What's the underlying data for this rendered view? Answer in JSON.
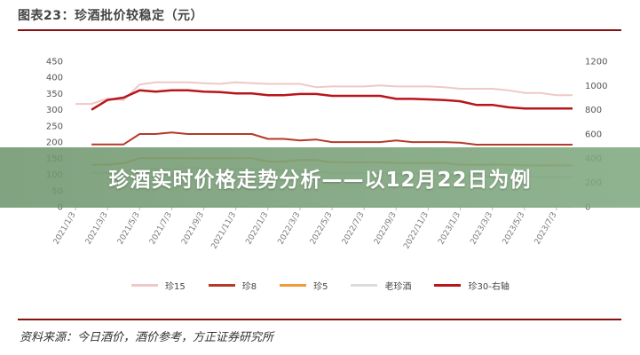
{
  "chart_title": "图表23：珍酒批价较稳定（元）",
  "banner": "珍酒实时价格走势分析——以12月22日为例",
  "source": "资料来源：今日酒价，酒价参考，方正证券研究所",
  "chart_data": {
    "type": "line",
    "title": "图表23：珍酒批价较稳定（元）",
    "xlabel": "",
    "ylabel": "",
    "ylim": [
      0,
      450
    ],
    "y2lim": [
      0,
      1200
    ],
    "yticks": [
      "450",
      "400",
      "350",
      "300",
      "250",
      "200",
      "150",
      "100",
      "50",
      "0"
    ],
    "y2ticks": [
      "1200",
      "1000",
      "800",
      "600",
      "400",
      "200",
      "0"
    ],
    "xticks": [
      "2021/1/3",
      "2021/3/3",
      "2021/5/3",
      "2021/7/3",
      "2021/9/3",
      "2021/11/3",
      "2022/1/3",
      "2022/3/3",
      "2022/5/3",
      "2022/7/3",
      "2022/9/3",
      "2022/11/3",
      "2023/1/3",
      "2023/3/3",
      "2023/5/3",
      "2023/7/3"
    ],
    "x": [
      0,
      0.5,
      1,
      1.5,
      2,
      2.5,
      3,
      3.5,
      4,
      4.5,
      5,
      5.5,
      6,
      6.5,
      7,
      7.5,
      8,
      8.5,
      9,
      9.5,
      10,
      10.5,
      11,
      11.5,
      12,
      12.5,
      13,
      13.5,
      14,
      14.5,
      15,
      15.5
    ],
    "series": [
      {
        "name": "珍15",
        "color": "#efc8c8",
        "axis": "left",
        "width": 2,
        "values": [
          318,
          318,
          335,
          330,
          378,
          385,
          385,
          385,
          382,
          380,
          385,
          382,
          380,
          380,
          380,
          370,
          372,
          372,
          372,
          375,
          372,
          372,
          372,
          370,
          365,
          365,
          365,
          360,
          352,
          352,
          345,
          345
        ]
      },
      {
        "name": "珍8",
        "color": "#b53a2a",
        "axis": "left",
        "width": 2,
        "values": [
          null,
          193,
          193,
          193,
          225,
          225,
          230,
          225,
          225,
          225,
          225,
          225,
          210,
          210,
          205,
          208,
          200,
          200,
          200,
          200,
          205,
          200,
          200,
          200,
          198,
          192,
          192,
          192,
          192,
          192,
          192,
          192
        ]
      },
      {
        "name": "珍5",
        "color": "#ee9a3a",
        "axis": "left",
        "width": 2,
        "values": [
          null,
          130,
          130,
          135,
          150,
          150,
          150,
          150,
          150,
          150,
          150,
          150,
          140,
          140,
          145,
          145,
          138,
          138,
          138,
          138,
          135,
          135,
          135,
          135,
          130,
          130,
          130,
          130,
          128,
          128,
          128,
          128
        ]
      },
      {
        "name": "老珍酒",
        "color": "#dcdcdc",
        "axis": "left",
        "width": 2,
        "values": [
          null,
          105,
          105,
          110,
          118,
          118,
          118,
          120,
          118,
          118,
          118,
          118,
          112,
          112,
          110,
          110,
          105,
          105,
          105,
          105,
          102,
          102,
          102,
          100,
          98,
          95,
          95,
          95,
          95,
          92,
          92,
          92
        ]
      },
      {
        "name": "珍30-右轴",
        "color": "#b8161c",
        "axis": "right",
        "width": 2.5,
        "values": [
          null,
          800,
          880,
          900,
          960,
          950,
          960,
          960,
          950,
          945,
          935,
          935,
          920,
          920,
          930,
          930,
          915,
          915,
          915,
          915,
          890,
          890,
          885,
          880,
          870,
          840,
          840,
          820,
          810,
          810,
          810,
          810
        ]
      }
    ]
  }
}
